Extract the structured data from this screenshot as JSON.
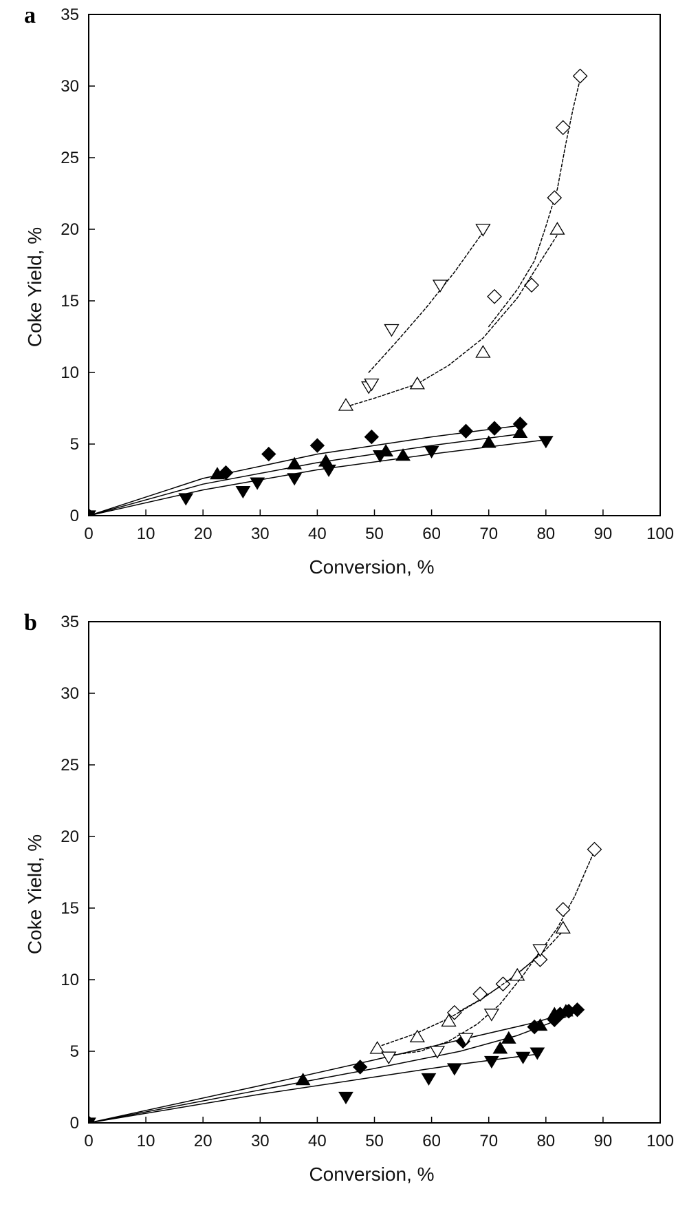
{
  "chart_data": [
    {
      "panel": "a",
      "type": "scatter",
      "xlabel": "Conversion, %",
      "ylabel": "Coke Yield, %",
      "xlim": [
        0,
        100
      ],
      "ylim": [
        0,
        35
      ],
      "xticks": [
        "0",
        "10",
        "20",
        "30",
        "40",
        "50",
        "60",
        "70",
        "80",
        "90",
        "100"
      ],
      "yticks": [
        "0",
        "5",
        "10",
        "15",
        "20",
        "25",
        "30",
        "35"
      ],
      "grid": false,
      "legend": "none",
      "series": [
        {
          "marker": "diamond",
          "filled": true,
          "fit": "solid",
          "points": [
            [
              0,
              0
            ],
            [
              24,
              3.0
            ],
            [
              31.5,
              4.3
            ],
            [
              40,
              4.9
            ],
            [
              49.5,
              5.5
            ],
            [
              66,
              5.9
            ],
            [
              71,
              6.1
            ],
            [
              75.5,
              6.4
            ]
          ],
          "curve": [
            [
              0,
              0
            ],
            [
              20,
              2.6
            ],
            [
              40,
              4.3
            ],
            [
              60,
              5.5
            ],
            [
              75.5,
              6.3
            ]
          ]
        },
        {
          "marker": "triangle-up",
          "filled": true,
          "fit": "solid",
          "points": [
            [
              0,
              0
            ],
            [
              22.5,
              2.9
            ],
            [
              36,
              3.6
            ],
            [
              41.5,
              3.8
            ],
            [
              52,
              4.5
            ],
            [
              55,
              4.2
            ],
            [
              70,
              5.1
            ],
            [
              75.5,
              5.8
            ]
          ],
          "curve": [
            [
              0,
              0
            ],
            [
              20,
              2.2
            ],
            [
              40,
              3.7
            ],
            [
              60,
              4.9
            ],
            [
              75.5,
              5.7
            ]
          ]
        },
        {
          "marker": "triangle-down",
          "filled": true,
          "fit": "solid",
          "points": [
            [
              0,
              0
            ],
            [
              17,
              1.2
            ],
            [
              27,
              1.7
            ],
            [
              29.5,
              2.3
            ],
            [
              36,
              2.6
            ],
            [
              42,
              3.2
            ],
            [
              51,
              4.2
            ],
            [
              60,
              4.5
            ],
            [
              80,
              5.2
            ]
          ],
          "curve": [
            [
              0,
              0
            ],
            [
              20,
              1.8
            ],
            [
              40,
              3.2
            ],
            [
              60,
              4.3
            ],
            [
              80,
              5.3
            ]
          ]
        },
        {
          "marker": "diamond",
          "filled": false,
          "fit": "dashed",
          "points": [
            [
              71,
              15.3
            ],
            [
              77.5,
              16.1
            ],
            [
              81.5,
              22.2
            ],
            [
              83,
              27.1
            ],
            [
              86,
              30.7
            ]
          ],
          "curve": [
            [
              70,
              13.2
            ],
            [
              75,
              15.8
            ],
            [
              78,
              17.8
            ],
            [
              80,
              20.2
            ],
            [
              82,
              22.8
            ],
            [
              83.5,
              26.0
            ],
            [
              84.8,
              28.5
            ],
            [
              86,
              30.5
            ]
          ]
        },
        {
          "marker": "triangle-up",
          "filled": false,
          "fit": "dashed",
          "points": [
            [
              45,
              7.7
            ],
            [
              57.5,
              9.2
            ],
            [
              69,
              11.4
            ],
            [
              82,
              20.0
            ]
          ],
          "curve": [
            [
              45,
              7.6
            ],
            [
              50,
              8.2
            ],
            [
              57.5,
              9.2
            ],
            [
              63,
              10.5
            ],
            [
              69,
              12.4
            ],
            [
              75,
              15.2
            ],
            [
              82,
              19.6
            ]
          ]
        },
        {
          "marker": "triangle-down",
          "filled": false,
          "fit": "dashed",
          "points": [
            [
              49,
              9.0
            ],
            [
              49.5,
              9.2
            ],
            [
              53,
              13.0
            ],
            [
              61.5,
              16.1
            ],
            [
              69,
              20.0
            ]
          ],
          "curve": [
            [
              49,
              10.0
            ],
            [
              54,
              12.2
            ],
            [
              59,
              14.5
            ],
            [
              64,
              17.0
            ],
            [
              69,
              19.8
            ]
          ]
        }
      ]
    },
    {
      "panel": "b",
      "type": "scatter",
      "xlabel": "Conversion, %",
      "ylabel": "Coke Yield, %",
      "xlim": [
        0,
        100
      ],
      "ylim": [
        0,
        35
      ],
      "xticks": [
        "0",
        "10",
        "20",
        "30",
        "40",
        "50",
        "60",
        "70",
        "80",
        "90",
        "100"
      ],
      "yticks": [
        "0",
        "5",
        "10",
        "15",
        "20",
        "25",
        "30",
        "35"
      ],
      "grid": false,
      "legend": "none",
      "series": [
        {
          "marker": "diamond",
          "filled": true,
          "fit": "solid",
          "points": [
            [
              0,
              0
            ],
            [
              47.5,
              3.9
            ],
            [
              65.5,
              5.7
            ],
            [
              78,
              6.7
            ],
            [
              81.5,
              7.2
            ],
            [
              82.5,
              7.6
            ],
            [
              84,
              7.8
            ],
            [
              85.5,
              7.9
            ]
          ],
          "curve": [
            [
              0,
              0
            ],
            [
              30,
              2.6
            ],
            [
              50,
              4.4
            ],
            [
              65,
              5.8
            ],
            [
              78,
              7.0
            ],
            [
              85.5,
              7.9
            ]
          ]
        },
        {
          "marker": "triangle-up",
          "filled": true,
          "fit": "solid",
          "points": [
            [
              0,
              0
            ],
            [
              37.5,
              3.0
            ],
            [
              72,
              5.2
            ],
            [
              73.5,
              5.9
            ],
            [
              79,
              6.8
            ],
            [
              81.5,
              7.6
            ],
            [
              83.5,
              7.8
            ]
          ],
          "curve": [
            [
              0,
              0
            ],
            [
              30,
              2.3
            ],
            [
              50,
              3.8
            ],
            [
              65,
              5.0
            ],
            [
              75,
              6.1
            ],
            [
              83.5,
              7.4
            ]
          ]
        },
        {
          "marker": "triangle-down",
          "filled": true,
          "fit": "solid",
          "points": [
            [
              0,
              0
            ],
            [
              45,
              1.8
            ],
            [
              59.5,
              3.1
            ],
            [
              64,
              3.8
            ],
            [
              70.5,
              4.3
            ],
            [
              76,
              4.6
            ],
            [
              78.5,
              4.9
            ]
          ],
          "curve": [
            [
              0,
              0
            ],
            [
              30,
              2.0
            ],
            [
              50,
              3.2
            ],
            [
              65,
              4.1
            ],
            [
              78.5,
              4.8
            ]
          ]
        },
        {
          "marker": "diamond",
          "filled": false,
          "fit": "dashed",
          "points": [
            [
              64,
              7.7
            ],
            [
              68.5,
              9.0
            ],
            [
              72.5,
              9.7
            ],
            [
              79,
              11.4
            ],
            [
              83,
              14.9
            ],
            [
              88.5,
              19.1
            ]
          ],
          "curve": [
            [
              64,
              7.6
            ],
            [
              68.5,
              8.6
            ],
            [
              73,
              9.8
            ],
            [
              78,
              11.4
            ],
            [
              82,
              13.6
            ],
            [
              85,
              15.8
            ],
            [
              88.5,
              19.0
            ]
          ]
        },
        {
          "marker": "triangle-up",
          "filled": false,
          "fit": "dashed",
          "points": [
            [
              50.5,
              5.2
            ],
            [
              57.5,
              6.0
            ],
            [
              63,
              7.1
            ],
            [
              75,
              10.3
            ],
            [
              83,
              13.6
            ]
          ],
          "curve": [
            [
              50.5,
              5.3
            ],
            [
              57,
              6.2
            ],
            [
              63,
              7.3
            ],
            [
              69,
              8.7
            ],
            [
              75,
              10.4
            ],
            [
              80,
              12.1
            ],
            [
              83,
              13.4
            ]
          ]
        },
        {
          "marker": "triangle-down",
          "filled": false,
          "fit": "dashed",
          "points": [
            [
              52.5,
              4.6
            ],
            [
              61,
              5.0
            ],
            [
              66,
              5.9
            ],
            [
              70.5,
              7.6
            ],
            [
              79,
              12.1
            ]
          ],
          "curve": [
            [
              52.5,
              4.7
            ],
            [
              58,
              5.0
            ],
            [
              63,
              5.7
            ],
            [
              68,
              6.9
            ],
            [
              72,
              8.3
            ],
            [
              76,
              10.3
            ],
            [
              79,
              12.0
            ]
          ]
        }
      ]
    }
  ]
}
